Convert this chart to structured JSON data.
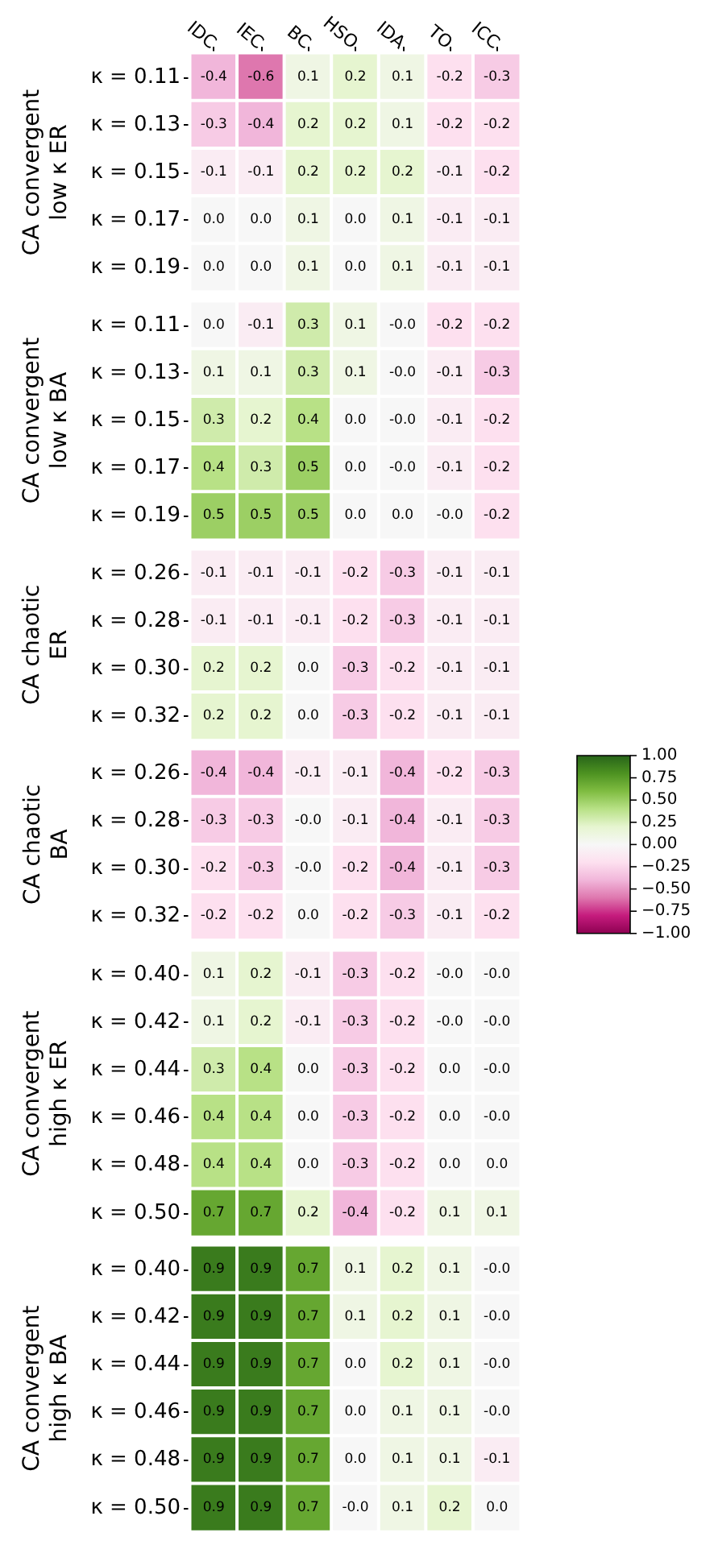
{
  "chart_data": [
    {
      "type": "heatmap",
      "ylabel": "CA convergent\nlow κ ER",
      "categories": [
        "IDC",
        "IEC",
        "BC",
        "HSO",
        "IDA",
        "TO",
        "ICC"
      ],
      "y_categories": [
        "κ = 0.11",
        "κ = 0.13",
        "κ = 0.15",
        "κ = 0.17",
        "κ = 0.19"
      ],
      "cells": [
        [
          -0.4,
          -0.6,
          0.1,
          0.2,
          0.1,
          -0.2,
          -0.3
        ],
        [
          -0.3,
          -0.4,
          0.2,
          0.2,
          0.1,
          -0.2,
          -0.2
        ],
        [
          -0.1,
          -0.1,
          0.2,
          0.2,
          0.2,
          -0.1,
          -0.2
        ],
        [
          0.0,
          0.0,
          0.1,
          0.0,
          0.1,
          -0.1,
          -0.1
        ],
        [
          0.0,
          0.0,
          0.1,
          0.0,
          0.1,
          -0.1,
          -0.1
        ]
      ],
      "cell_labels": [
        [
          "-0.4",
          "-0.6",
          "0.1",
          "0.2",
          "0.1",
          "-0.2",
          "-0.3"
        ],
        [
          "-0.3",
          "-0.4",
          "0.2",
          "0.2",
          "0.1",
          "-0.2",
          "-0.2"
        ],
        [
          "-0.1",
          "-0.1",
          "0.2",
          "0.2",
          "0.2",
          "-0.1",
          "-0.2"
        ],
        [
          "0.0",
          "0.0",
          "0.1",
          "0.0",
          "0.1",
          "-0.1",
          "-0.1"
        ],
        [
          "0.0",
          "0.0",
          "0.1",
          "0.0",
          "0.1",
          "-0.1",
          "-0.1"
        ]
      ],
      "data_labels": true
    },
    {
      "type": "heatmap",
      "ylabel": "CA convergent\nlow κ BA",
      "categories": [
        null,
        null,
        null,
        null,
        null,
        null,
        null
      ],
      "y_categories": [
        "κ = 0.11",
        "κ = 0.13",
        "κ = 0.15",
        "κ = 0.17",
        "κ = 0.19"
      ],
      "tick_labels": "y",
      "cells": [
        [
          0.0,
          -0.1,
          0.3,
          0.1,
          0.0,
          -0.2,
          -0.2
        ],
        [
          0.1,
          0.1,
          0.3,
          0.1,
          0.0,
          -0.1,
          -0.3
        ],
        [
          0.3,
          0.2,
          0.4,
          0.0,
          0.0,
          -0.1,
          -0.2
        ],
        [
          0.4,
          0.3,
          0.5,
          0.0,
          0.0,
          -0.1,
          -0.2
        ],
        [
          0.5,
          0.5,
          0.5,
          0.0,
          0.0,
          0.0,
          -0.2
        ]
      ],
      "cell_labels": [
        [
          "0.0",
          "-0.1",
          "0.3",
          "0.1",
          "-0.0",
          "-0.2",
          "-0.2"
        ],
        [
          "0.1",
          "0.1",
          "0.3",
          "0.1",
          "-0.0",
          "-0.1",
          "-0.3"
        ],
        [
          "0.3",
          "0.2",
          "0.4",
          "0.0",
          "-0.0",
          "-0.1",
          "-0.2"
        ],
        [
          "0.4",
          "0.3",
          "0.5",
          "0.0",
          "-0.0",
          "-0.1",
          "-0.2"
        ],
        [
          "0.5",
          "0.5",
          "0.5",
          "0.0",
          "0.0",
          "-0.0",
          "-0.2"
        ]
      ],
      "data_labels": true
    },
    {
      "type": "heatmap",
      "ylabel": "CA chaotic\nER",
      "categories": [
        null,
        null,
        null,
        null,
        null,
        null,
        null
      ],
      "y_categories": [
        "κ = 0.26",
        "κ = 0.28",
        "κ = 0.30",
        "κ = 0.32"
      ],
      "tick_labels": "y",
      "cells": [
        [
          -0.1,
          -0.1,
          -0.1,
          -0.2,
          -0.3,
          -0.1,
          -0.1
        ],
        [
          -0.1,
          -0.1,
          -0.1,
          -0.2,
          -0.3,
          -0.1,
          -0.1
        ],
        [
          0.2,
          0.2,
          0.0,
          -0.3,
          -0.2,
          -0.1,
          -0.1
        ],
        [
          0.2,
          0.2,
          0.0,
          -0.3,
          -0.2,
          -0.1,
          -0.1
        ]
      ],
      "cell_labels": [
        [
          "-0.1",
          "-0.1",
          "-0.1",
          "-0.2",
          "-0.3",
          "-0.1",
          "-0.1"
        ],
        [
          "-0.1",
          "-0.1",
          "-0.1",
          "-0.2",
          "-0.3",
          "-0.1",
          "-0.1"
        ],
        [
          "0.2",
          "0.2",
          "0.0",
          "-0.3",
          "-0.2",
          "-0.1",
          "-0.1"
        ],
        [
          "0.2",
          "0.2",
          "0.0",
          "-0.3",
          "-0.2",
          "-0.1",
          "-0.1"
        ]
      ],
      "data_labels": true
    },
    {
      "type": "heatmap",
      "ylabel": "CA chaotic\nBA",
      "categories": [
        null,
        null,
        null,
        null,
        null,
        null,
        null
      ],
      "y_categories": [
        "κ = 0.26",
        "κ = 0.28",
        "κ = 0.30",
        "κ = 0.32"
      ],
      "tick_labels": "y",
      "cells": [
        [
          -0.4,
          -0.4,
          -0.1,
          -0.1,
          -0.4,
          -0.2,
          -0.3
        ],
        [
          -0.3,
          -0.3,
          0.0,
          -0.1,
          -0.4,
          -0.1,
          -0.3
        ],
        [
          -0.2,
          -0.3,
          0.0,
          -0.2,
          -0.4,
          -0.1,
          -0.3
        ],
        [
          -0.2,
          -0.2,
          0.0,
          -0.2,
          -0.3,
          -0.1,
          -0.2
        ]
      ],
      "cell_labels": [
        [
          "-0.4",
          "-0.4",
          "-0.1",
          "-0.1",
          "-0.4",
          "-0.2",
          "-0.3"
        ],
        [
          "-0.3",
          "-0.3",
          "-0.0",
          "-0.1",
          "-0.4",
          "-0.1",
          "-0.3"
        ],
        [
          "-0.2",
          "-0.3",
          "-0.0",
          "-0.2",
          "-0.4",
          "-0.1",
          "-0.3"
        ],
        [
          "-0.2",
          "-0.2",
          "0.0",
          "-0.2",
          "-0.3",
          "-0.1",
          "-0.2"
        ]
      ],
      "data_labels": true,
      "clim": [
        -1,
        1
      ],
      "cticks": [
        {
          "value": 1,
          "label": "1.00"
        },
        {
          "value": 0.75,
          "label": "0.75"
        },
        {
          "value": 0.5,
          "label": "0.50"
        },
        {
          "value": 0.25,
          "label": "0.25"
        },
        {
          "value": 0,
          "label": "0.00"
        },
        {
          "value": -0.25,
          "label": "−0.25"
        },
        {
          "value": -0.5,
          "label": "−0.50"
        },
        {
          "value": -0.75,
          "label": "−0.75"
        },
        {
          "value": -1,
          "label": "−1.00"
        }
      ]
    },
    {
      "type": "heatmap",
      "ylabel": "CA convergent\nhigh κ ER",
      "categories": [
        null,
        null,
        null,
        null,
        null,
        null,
        null
      ],
      "y_categories": [
        "κ = 0.40",
        "κ = 0.42",
        "κ = 0.44",
        "κ = 0.46",
        "κ = 0.48",
        "κ = 0.50"
      ],
      "tick_labels": "y",
      "cells": [
        [
          0.1,
          0.2,
          -0.1,
          -0.3,
          -0.2,
          0.0,
          0.0
        ],
        [
          0.1,
          0.2,
          -0.1,
          -0.3,
          -0.2,
          0.0,
          0.0
        ],
        [
          0.3,
          0.4,
          0.0,
          -0.3,
          -0.2,
          0.0,
          0.0
        ],
        [
          0.4,
          0.4,
          0.0,
          -0.3,
          -0.2,
          0.0,
          0.0
        ],
        [
          0.4,
          0.4,
          0.0,
          -0.3,
          -0.2,
          0.0,
          0.0
        ],
        [
          0.7,
          0.7,
          0.2,
          -0.4,
          -0.2,
          0.1,
          0.1
        ]
      ],
      "cell_labels": [
        [
          "0.1",
          "0.2",
          "-0.1",
          "-0.3",
          "-0.2",
          "-0.0",
          "-0.0"
        ],
        [
          "0.1",
          "0.2",
          "-0.1",
          "-0.3",
          "-0.2",
          "-0.0",
          "-0.0"
        ],
        [
          "0.3",
          "0.4",
          "0.0",
          "-0.3",
          "-0.2",
          "0.0",
          "-0.0"
        ],
        [
          "0.4",
          "0.4",
          "0.0",
          "-0.3",
          "-0.2",
          "0.0",
          "-0.0"
        ],
        [
          "0.4",
          "0.4",
          "0.0",
          "-0.3",
          "-0.2",
          "0.0",
          "0.0"
        ],
        [
          "0.7",
          "0.7",
          "0.2",
          "-0.4",
          "-0.2",
          "0.1",
          "0.1"
        ]
      ],
      "data_labels": true
    },
    {
      "type": "heatmap",
      "ylabel": "CA convergent\nhigh κ BA",
      "categories": [
        null,
        null,
        null,
        null,
        null,
        null,
        null
      ],
      "y_categories": [
        "κ = 0.40",
        "κ = 0.42",
        "κ = 0.44",
        "κ = 0.46",
        "κ = 0.48",
        "κ = 0.50"
      ],
      "tick_labels": "y",
      "cells": [
        [
          0.9,
          0.9,
          0.7,
          0.1,
          0.2,
          0.1,
          0.0
        ],
        [
          0.9,
          0.9,
          0.7,
          0.1,
          0.2,
          0.1,
          0.0
        ],
        [
          0.9,
          0.9,
          0.7,
          0.0,
          0.2,
          0.1,
          0.0
        ],
        [
          0.9,
          0.9,
          0.7,
          0.0,
          0.1,
          0.1,
          0.0
        ],
        [
          0.9,
          0.9,
          0.7,
          0.0,
          0.1,
          0.1,
          -0.1
        ],
        [
          0.9,
          0.9,
          0.7,
          0.0,
          0.1,
          0.2,
          0.0
        ]
      ],
      "cell_labels": [
        [
          "0.9",
          "0.9",
          "0.7",
          "0.1",
          "0.2",
          "0.1",
          "-0.0"
        ],
        [
          "0.9",
          "0.9",
          "0.7",
          "0.1",
          "0.2",
          "0.1",
          "-0.0"
        ],
        [
          "0.9",
          "0.9",
          "0.7",
          "0.0",
          "0.2",
          "0.1",
          "-0.0"
        ],
        [
          "0.9",
          "0.9",
          "0.7",
          "0.0",
          "0.1",
          "0.1",
          "-0.0"
        ],
        [
          "0.9",
          "0.9",
          "0.7",
          "0.0",
          "0.1",
          "0.1",
          "-0.1"
        ],
        [
          "0.9",
          "0.9",
          "0.7",
          "-0.0",
          "0.1",
          "0.2",
          "0.0"
        ]
      ],
      "data_labels": true
    }
  ]
}
